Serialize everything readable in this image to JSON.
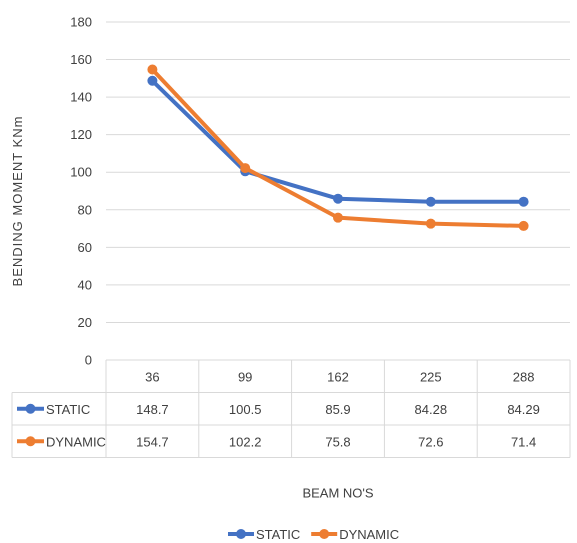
{
  "chart_data": {
    "type": "line",
    "title": "",
    "ylabel": "BENDING MOMENT KNm",
    "xlabel": "BEAM NO'S",
    "categories": [
      "36",
      "99",
      "162",
      "225",
      "288"
    ],
    "ylim": [
      0,
      180
    ],
    "yticks": [
      0,
      20,
      40,
      60,
      80,
      100,
      120,
      140,
      160,
      180
    ],
    "grid": true,
    "legend_position": "bottom",
    "data_table": true,
    "series": [
      {
        "name": "STATIC",
        "color": "#4472C4",
        "values": [
          148.7,
          100.5,
          85.9,
          84.28,
          84.29
        ]
      },
      {
        "name": "DYNAMIC",
        "color": "#ED7D31",
        "values": [
          154.7,
          102.2,
          75.8,
          72.6,
          71.4
        ]
      }
    ]
  }
}
